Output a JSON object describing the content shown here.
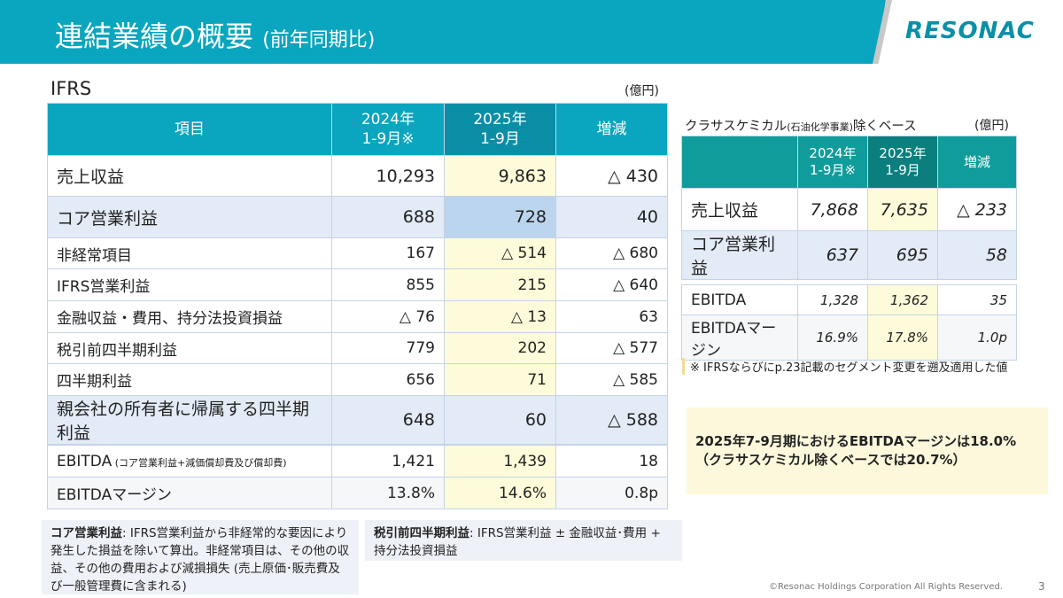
{
  "header": {
    "title": "連結業績の概要",
    "subtitle": "(前年同期比)",
    "logo": "RESONAC"
  },
  "main": {
    "label": "IFRS",
    "unit": "(億円)",
    "columns": [
      "項目",
      "2024年",
      "1-9月※",
      "2025年",
      "1-9月",
      "増減"
    ],
    "rows": [
      {
        "item": "売上収益",
        "y2024": "10,293",
        "y2025": "9,863",
        "diff": "△ 430"
      },
      {
        "item": "コア営業利益",
        "y2024": "688",
        "y2025": "728",
        "diff": "40"
      },
      {
        "item": "非経常項目",
        "y2024": "167",
        "y2025": "△ 514",
        "diff": "△ 680"
      },
      {
        "item": "IFRS営業利益",
        "y2024": "855",
        "y2025": "215",
        "diff": "△ 640"
      },
      {
        "item": "金融収益・費用、持分法投資損益",
        "y2024": "△ 76",
        "y2025": "△ 13",
        "diff": "63"
      },
      {
        "item": "税引前四半期利益",
        "y2024": "779",
        "y2025": "202",
        "diff": "△ 577"
      },
      {
        "item": "四半期利益",
        "y2024": "656",
        "y2025": "71",
        "diff": "△ 585"
      },
      {
        "item": "親会社の所有者に帰属する四半期利益",
        "y2024": "648",
        "y2025": "60",
        "diff": "△ 588"
      }
    ],
    "ebitda": [
      {
        "item": "EBITDA",
        "note": "(コア営業利益+減価償却費及び償却費)",
        "y2024": "1,421",
        "y2025": "1,439",
        "diff": "18"
      },
      {
        "item": "EBITDAマージン",
        "y2024": "13.8%",
        "y2025": "14.6%",
        "diff": "0.8p"
      }
    ]
  },
  "side": {
    "title": "クラサスケミカル",
    "title_small": "(石油化学事業)",
    "title_end": "除くベース",
    "unit": "(億円)",
    "columns": [
      "2024年",
      "1-9月※",
      "2025年",
      "1-9月",
      "増減"
    ],
    "rows": [
      {
        "item": "売上収益",
        "y2024": "7,868",
        "y2025": "7,635",
        "diff": "△ 233"
      },
      {
        "item": "コア営業利益",
        "y2024": "637",
        "y2025": "695",
        "diff": "58"
      }
    ],
    "ebitda": [
      {
        "item": "EBITDA",
        "y2024": "1,328",
        "y2025": "1,362",
        "diff": "35"
      },
      {
        "item": "EBITDAマージン",
        "y2024": "16.9%",
        "y2025": "17.8%",
        "diff": "1.0p"
      }
    ],
    "footnote": "※ IFRSならびにp.23記載のセグメント変更を遡及適用した値"
  },
  "highlight": {
    "line1": "2025年7-9月期におけるEBITDAマージンは18.0%",
    "line2": "（クラサスケミカル除くベースでは20.7%）"
  },
  "notes": [
    {
      "term": "コア営業利益",
      "text": ": IFRS営業利益から非経常的な要因により発生した損益を除いて算出。非経常項目は、その他の収益、その他の費用および減損損失 (売上原価･販売費及び一般管理費に含まれる)"
    },
    {
      "term": "税引前四半期利益",
      "text": ": IFRS営業利益 ± 金融収益･費用 + 持分法投資損益"
    }
  ],
  "footer": {
    "copyright": "©Resonac Holdings Corporation  All Rights Reserved.",
    "page": "3"
  },
  "colors": {
    "header": "#0aa5be",
    "side_header": "#109c9a",
    "highlight_2025": "#fdfbd9"
  }
}
